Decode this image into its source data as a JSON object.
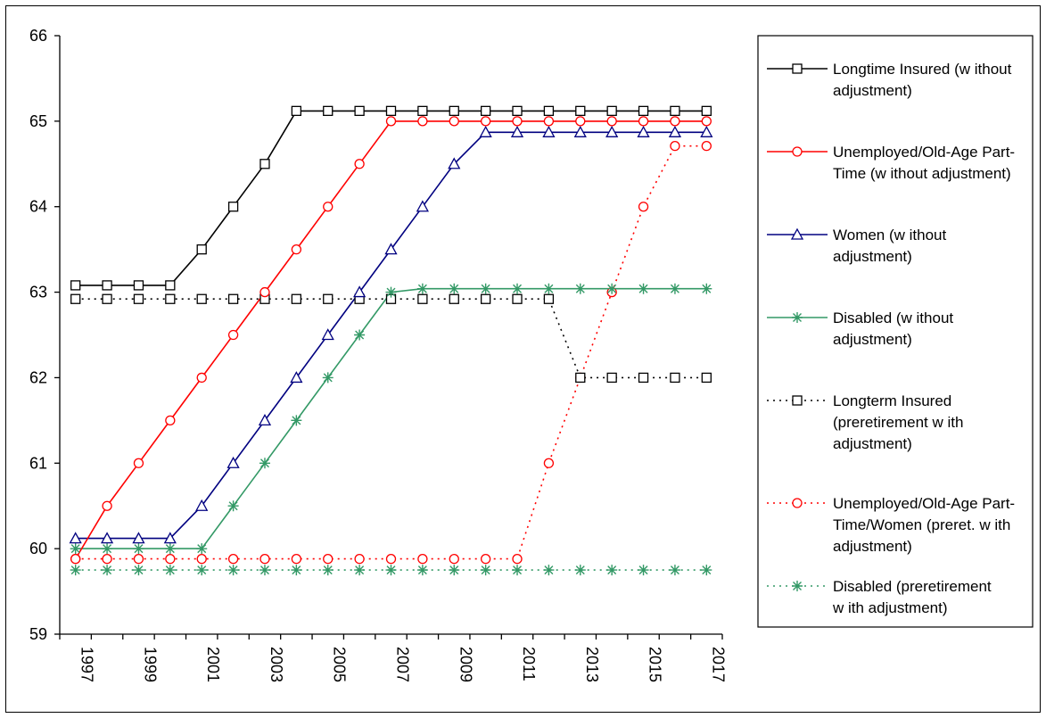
{
  "chart_data": {
    "type": "line",
    "title": "",
    "xlabel": "",
    "ylabel": "",
    "ylim": [
      59,
      66
    ],
    "yticks": [
      59,
      60,
      61,
      62,
      63,
      64,
      65,
      66
    ],
    "x": [
      1997,
      1998,
      1999,
      2000,
      2001,
      2002,
      2003,
      2004,
      2005,
      2006,
      2007,
      2008,
      2009,
      2010,
      2011,
      2012,
      2013,
      2014,
      2015,
      2016,
      2017
    ],
    "xtick_labels": [
      "1997",
      "1999",
      "2001",
      "2003",
      "2005",
      "2007",
      "2009",
      "2011",
      "2013",
      "2015",
      "2017"
    ],
    "grid": false,
    "legend_position": "right",
    "series": [
      {
        "name": "Longtime Insured (without adjustment)",
        "legend_lines": [
          "Longtime Insured (w ithout",
          "adjustment)"
        ],
        "color": "#000000",
        "marker": "square",
        "dash": "solid",
        "values": [
          63.08,
          63.08,
          63.08,
          63.08,
          63.5,
          64.0,
          64.5,
          65.12,
          65.12,
          65.12,
          65.12,
          65.12,
          65.12,
          65.12,
          65.12,
          65.12,
          65.12,
          65.12,
          65.12,
          65.12,
          65.12
        ]
      },
      {
        "name": "Unemployed/Old-Age Part-Time (without adjustment)",
        "legend_lines": [
          "Unemployed/Old-Age Part-",
          "Time (w ithout adjustment)"
        ],
        "color": "#ff0000",
        "marker": "circle",
        "dash": "solid",
        "values": [
          59.88,
          60.5,
          61.0,
          61.5,
          62.0,
          62.5,
          63.0,
          63.5,
          64.0,
          64.5,
          65.0,
          65.0,
          65.0,
          65.0,
          65.0,
          65.0,
          65.0,
          65.0,
          65.0,
          65.0,
          65.0
        ]
      },
      {
        "name": "Women (without adjustment)",
        "legend_lines": [
          "Women (w ithout",
          "adjustment)"
        ],
        "color": "#000080",
        "marker": "triangle",
        "dash": "solid",
        "values": [
          60.12,
          60.12,
          60.12,
          60.12,
          60.5,
          61.0,
          61.5,
          62.0,
          62.5,
          63.0,
          63.5,
          64.0,
          64.5,
          64.87,
          64.87,
          64.87,
          64.87,
          64.87,
          64.87,
          64.87,
          64.87
        ]
      },
      {
        "name": "Disabled (without adjustment)",
        "legend_lines": [
          "Disabled (w ithout",
          "adjustment)"
        ],
        "color": "#339966",
        "marker": "star",
        "dash": "solid",
        "values": [
          60.0,
          60.0,
          60.0,
          60.0,
          60.0,
          60.5,
          61.0,
          61.5,
          62.0,
          62.5,
          63.0,
          63.04,
          63.04,
          63.04,
          63.04,
          63.04,
          63.04,
          63.04,
          63.04,
          63.04,
          63.04
        ]
      },
      {
        "name": "Longterm Insured (preretirement with adjustment)",
        "legend_lines": [
          "Longterm Insured",
          "(preretirement w ith",
          "adjustment)"
        ],
        "color": "#000000",
        "marker": "square",
        "dash": "dotted",
        "values": [
          62.92,
          62.92,
          62.92,
          62.92,
          62.92,
          62.92,
          62.92,
          62.92,
          62.92,
          62.92,
          62.92,
          62.92,
          62.92,
          62.92,
          62.92,
          62.92,
          62.0,
          62.0,
          62.0,
          62.0,
          62.0
        ]
      },
      {
        "name": "Unemployed/Old-Age Part-Time/Women (preret. with adjustment)",
        "legend_lines": [
          "Unemployed/Old-Age Part-",
          "Time/Women (preret. w ith",
          "adjustment)"
        ],
        "color": "#ff0000",
        "marker": "circle",
        "dash": "dotted",
        "values": [
          59.88,
          59.88,
          59.88,
          59.88,
          59.88,
          59.88,
          59.88,
          59.88,
          59.88,
          59.88,
          59.88,
          59.88,
          59.88,
          59.88,
          59.88,
          61.0,
          62.0,
          63.0,
          64.0,
          64.71,
          64.71
        ]
      },
      {
        "name": "Disabled (preretirement with adjustment)",
        "legend_lines": [
          "Disabled (preretirement",
          "w ith adjustment)"
        ],
        "color": "#339966",
        "marker": "star",
        "dash": "dotted",
        "values": [
          59.75,
          59.75,
          59.75,
          59.75,
          59.75,
          59.75,
          59.75,
          59.75,
          59.75,
          59.75,
          59.75,
          59.75,
          59.75,
          59.75,
          59.75,
          59.75,
          59.75,
          59.75,
          59.75,
          59.75,
          59.75
        ]
      }
    ]
  }
}
